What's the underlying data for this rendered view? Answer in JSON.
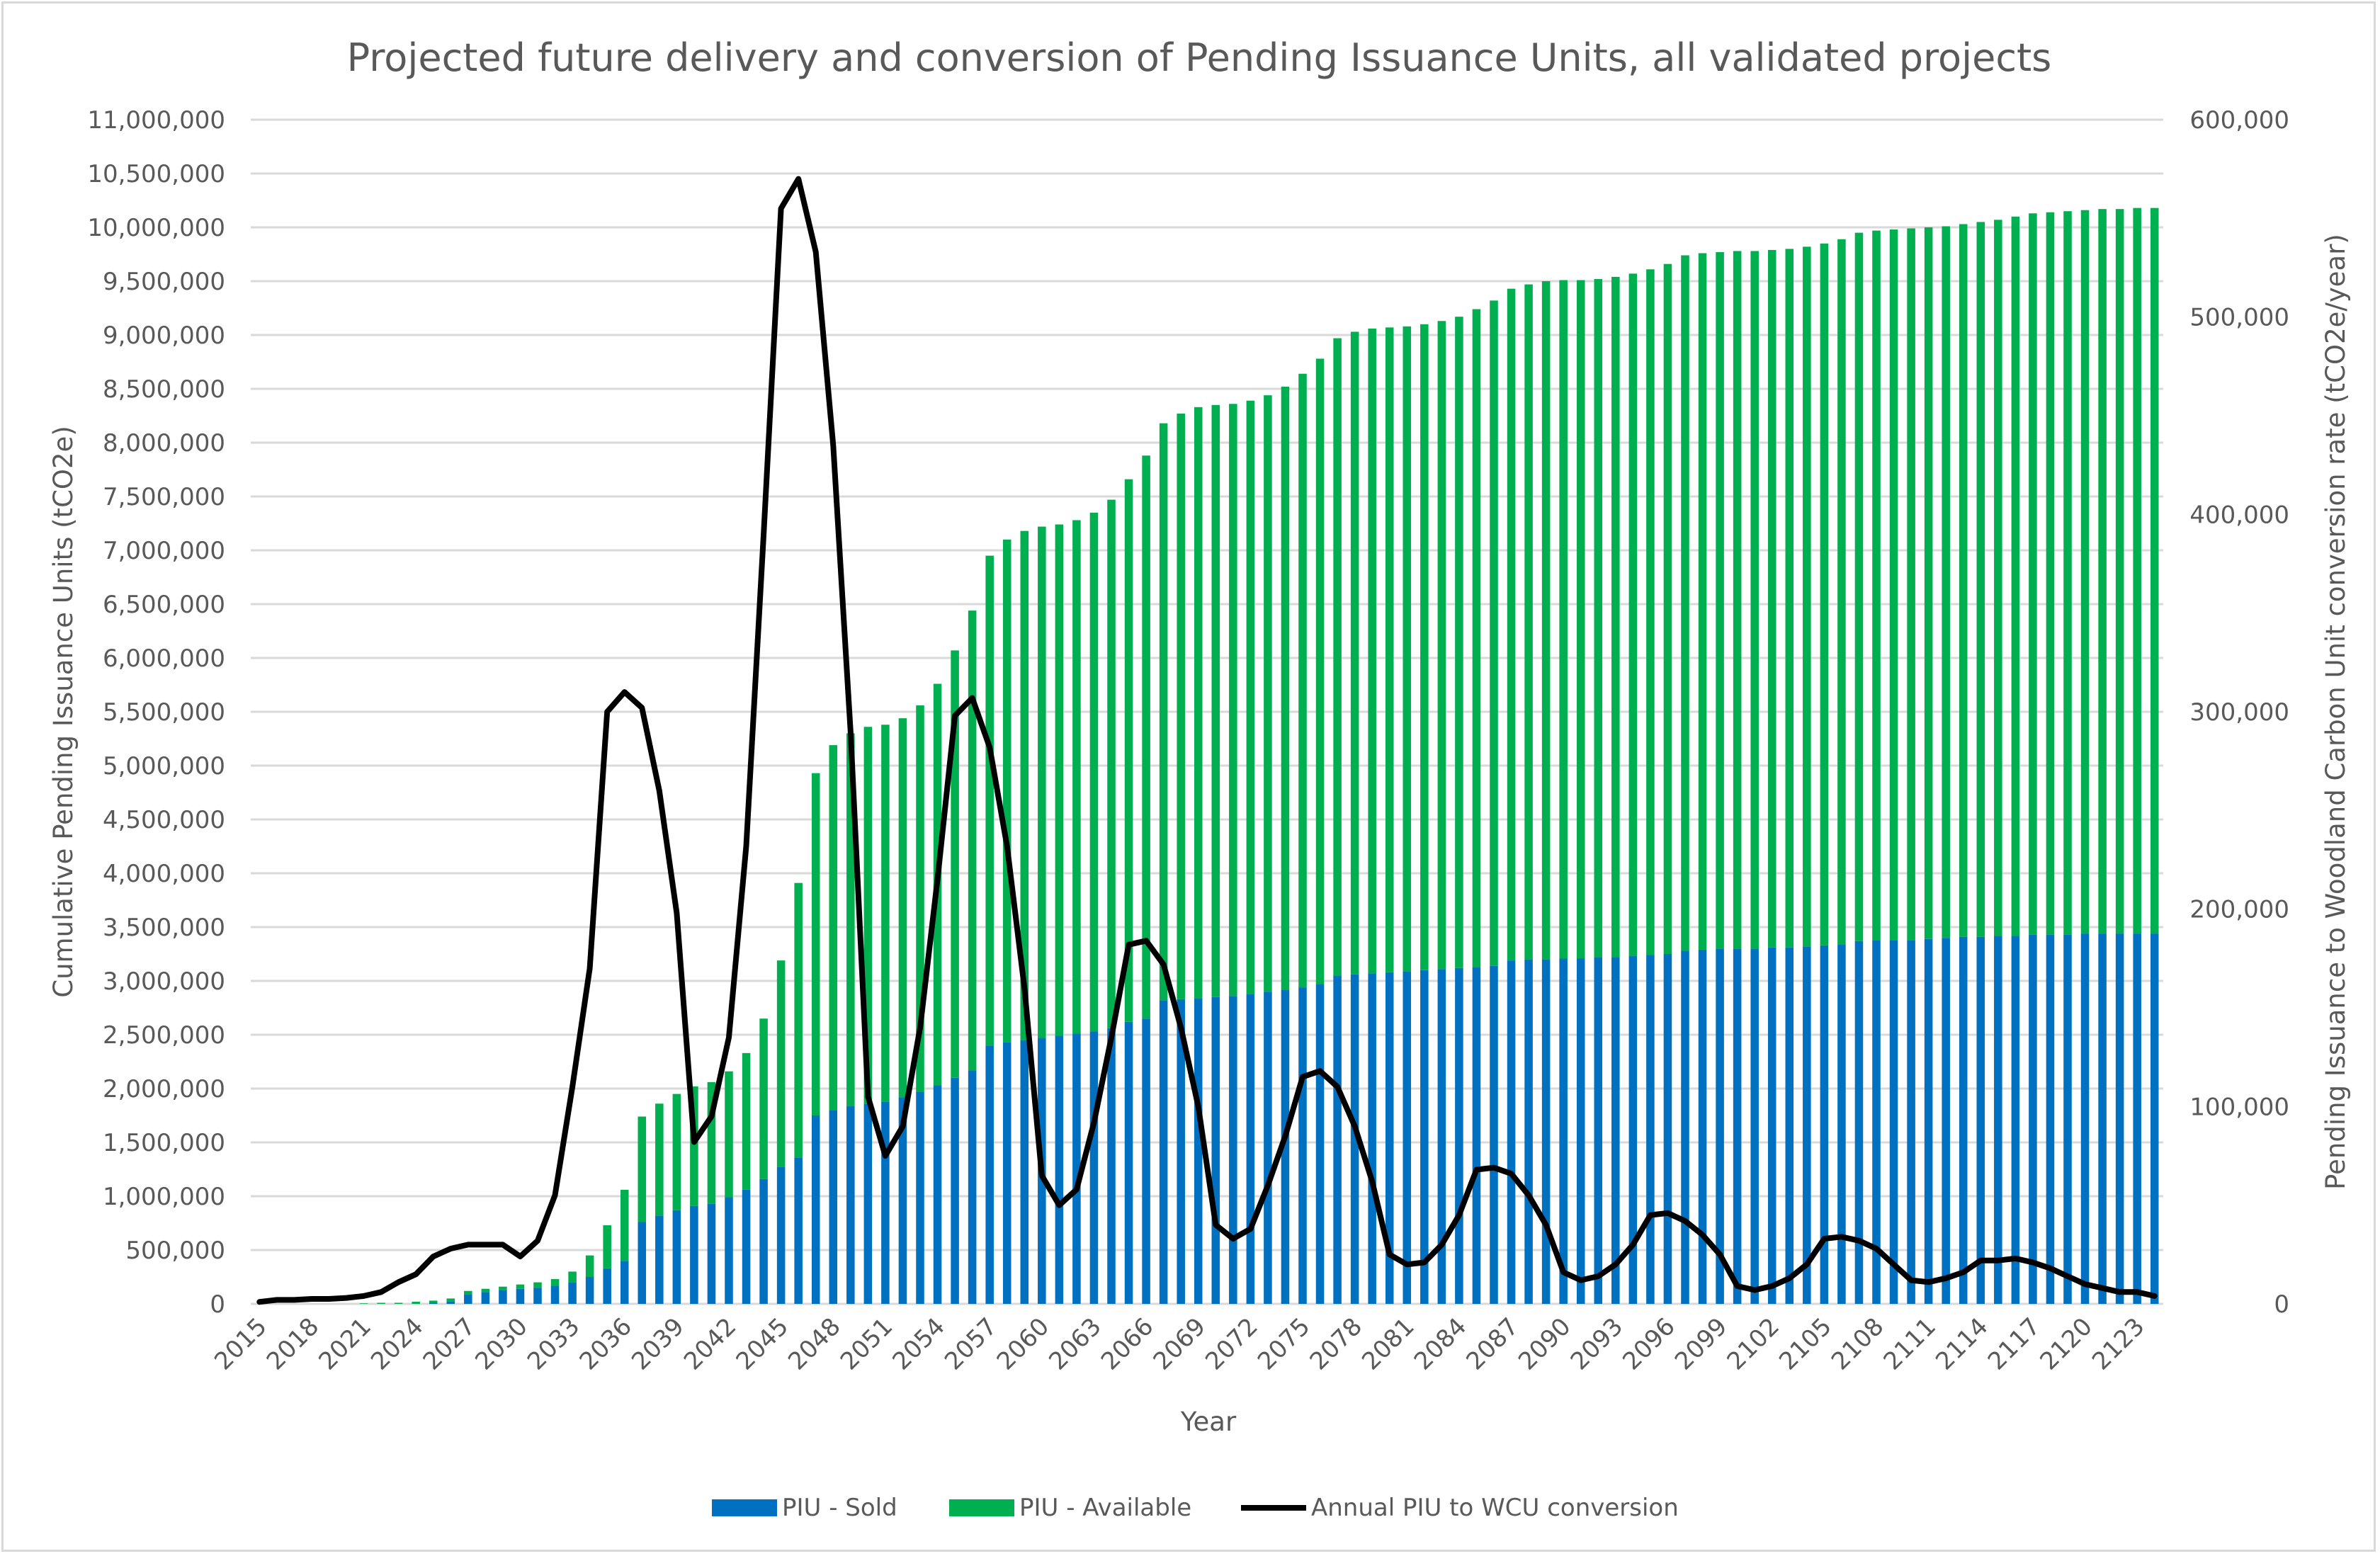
{
  "chart_data": {
    "type": "bar",
    "subtype": "stacked bar with secondary-axis line",
    "title": "Projected future delivery and conversion of Pending Issuance Units, all validated projects",
    "xlabel": "Year",
    "ylabel": "Cumulative Pending Issuance Units (tCO2e)",
    "y2label": "Pending Issuance to Woodland Carbon Unit conversion rate (tCO2e/year)",
    "x_start": 2015,
    "x_end": 2124,
    "x_tick_labels": [
      "2015",
      "2018",
      "2021",
      "2024",
      "2027",
      "2030",
      "2033",
      "2036",
      "2039",
      "2042",
      "2045",
      "2048",
      "2051",
      "2054",
      "2057",
      "2060",
      "2063",
      "2066",
      "2069",
      "2072",
      "2075",
      "2078",
      "2081",
      "2084",
      "2087",
      "2090",
      "2093",
      "2096",
      "2099",
      "2102",
      "2105",
      "2108",
      "2111",
      "2114",
      "2117",
      "2120",
      "2123"
    ],
    "ylim": [
      0,
      11000000
    ],
    "y_tick_labels": [
      "0",
      "500,000",
      "1,000,000",
      "1,500,000",
      "2,000,000",
      "2,500,000",
      "3,000,000",
      "3,500,000",
      "4,000,000",
      "4,500,000",
      "5,000,000",
      "5,500,000",
      "6,000,000",
      "6,500,000",
      "7,000,000",
      "7,500,000",
      "8,000,000",
      "8,500,000",
      "9,000,000",
      "9,500,000",
      "10,000,000",
      "10,500,000",
      "11,000,000"
    ],
    "y2lim": [
      0,
      600000
    ],
    "y2_tick_labels": [
      "0",
      "100,000",
      "200,000",
      "300,000",
      "400,000",
      "500,000",
      "600,000"
    ],
    "grid": true,
    "legend_position": "bottom",
    "bar_unit_multiplier": 1000000,
    "line_unit_multiplier": 1000,
    "series": [
      {
        "name": "PIU - Sold",
        "type": "bar",
        "axis": "left",
        "color": "#0070C0",
        "values": [
          0,
          0,
          0,
          0,
          0,
          0,
          0,
          0,
          0,
          0,
          0.01,
          0.02,
          0.09,
          0.11,
          0.13,
          0.14,
          0.15,
          0.17,
          0.2,
          0.25,
          0.33,
          0.4,
          0.76,
          0.82,
          0.87,
          0.91,
          0.93,
          0.99,
          1.06,
          1.16,
          1.27,
          1.36,
          1.75,
          1.8,
          1.84,
          1.86,
          1.88,
          1.92,
          1.97,
          2.03,
          2.1,
          2.17,
          2.4,
          2.43,
          2.45,
          2.47,
          2.49,
          2.51,
          2.53,
          2.56,
          2.62,
          2.65,
          2.82,
          2.83,
          2.84,
          2.85,
          2.86,
          2.88,
          2.9,
          2.92,
          2.94,
          2.97,
          3.05,
          3.06,
          3.07,
          3.08,
          3.09,
          3.1,
          3.11,
          3.12,
          3.13,
          3.14,
          3.19,
          3.2,
          3.2,
          3.21,
          3.21,
          3.22,
          3.22,
          3.23,
          3.24,
          3.25,
          3.28,
          3.29,
          3.3,
          3.3,
          3.3,
          3.31,
          3.31,
          3.32,
          3.33,
          3.34,
          3.37,
          3.38,
          3.38,
          3.38,
          3.39,
          3.4,
          3.41,
          3.41,
          3.42,
          3.42,
          3.43,
          3.43,
          3.43,
          3.44,
          3.44,
          3.44,
          3.44,
          3.44
        ]
      },
      {
        "name": "PIU - Available",
        "type": "bar",
        "axis": "left",
        "color": "#00B050",
        "values": [
          0,
          0,
          0,
          0,
          0,
          0,
          0.005,
          0.01,
          0.01,
          0.02,
          0.02,
          0.03,
          0.03,
          0.03,
          0.03,
          0.04,
          0.05,
          0.06,
          0.1,
          0.2,
          0.4,
          0.66,
          0.98,
          1.04,
          1.08,
          1.11,
          1.13,
          1.17,
          1.27,
          1.49,
          1.92,
          2.55,
          3.18,
          3.39,
          3.46,
          3.5,
          3.5,
          3.52,
          3.59,
          3.73,
          3.97,
          4.27,
          4.55,
          4.67,
          4.73,
          4.75,
          4.75,
          4.77,
          4.82,
          4.91,
          5.04,
          5.23,
          5.36,
          5.44,
          5.49,
          5.5,
          5.5,
          5.51,
          5.54,
          5.6,
          5.7,
          5.81,
          5.92,
          5.97,
          5.99,
          5.99,
          5.99,
          6.0,
          6.02,
          6.05,
          6.11,
          6.18,
          6.24,
          6.27,
          6.3,
          6.3,
          6.3,
          6.3,
          6.32,
          6.34,
          6.37,
          6.41,
          6.46,
          6.47,
          6.47,
          6.48,
          6.48,
          6.48,
          6.49,
          6.5,
          6.52,
          6.55,
          6.58,
          6.59,
          6.6,
          6.61,
          6.61,
          6.61,
          6.62,
          6.64,
          6.65,
          6.68,
          6.7,
          6.71,
          6.72,
          6.72,
          6.73,
          6.73,
          6.74,
          6.74
        ]
      },
      {
        "name": "Annual PIU to WCU conversion",
        "type": "line",
        "axis": "right",
        "color": "#000000",
        "values": [
          1,
          2,
          2,
          2.5,
          2.5,
          3,
          4,
          6,
          11,
          15,
          24,
          28,
          30,
          30,
          30,
          24,
          32,
          55,
          110,
          170,
          300,
          310,
          302,
          260,
          198,
          82,
          95,
          135,
          232,
          390,
          555,
          570,
          533,
          435,
          290,
          105,
          75,
          90,
          140,
          215,
          298,
          307,
          282,
          232,
          160,
          65,
          50,
          58,
          92,
          135,
          182,
          184,
          172,
          140,
          100,
          40,
          33,
          38,
          60,
          85,
          115,
          118,
          110,
          90,
          62,
          25,
          20,
          21,
          30,
          45,
          68,
          69,
          66,
          55,
          40,
          16,
          12,
          14,
          20,
          30,
          45,
          46,
          42,
          35,
          25,
          9,
          7,
          9,
          13,
          20,
          33,
          34,
          32,
          28,
          20,
          12,
          11,
          13,
          16,
          22,
          22,
          23,
          21,
          18,
          14,
          10,
          8,
          6,
          6,
          4
        ]
      }
    ]
  }
}
